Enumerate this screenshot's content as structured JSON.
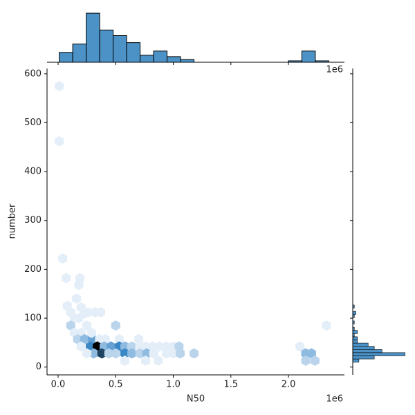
{
  "chart_data": [
    {
      "type": "hexbin",
      "xlabel": "N50",
      "ylabel": "number",
      "offset_label": "1e6",
      "x": [
        10000,
        10000,
        40000,
        70000,
        190000,
        180000,
        160000,
        200000,
        80000,
        110000,
        230000,
        260000,
        320000,
        370000,
        140000,
        180000,
        110000,
        500000,
        2330000,
        140000,
        200000,
        170000,
        230000,
        300000,
        360000,
        410000,
        530000,
        700000,
        200000,
        280000,
        340000,
        400000,
        460000,
        530000,
        580000,
        640000,
        710000,
        760000,
        820000,
        880000,
        940000,
        1000000,
        1050000,
        2100000,
        310000,
        380000,
        440000,
        500000,
        580000,
        640000,
        710000,
        770000,
        830000,
        940000,
        1000000,
        1060000,
        1180000,
        2150000,
        2200000,
        580000,
        760000,
        870000,
        2150000,
        2230000,
        250000,
        290000,
        250000
      ],
      "y": [
        575,
        462,
        222,
        182,
        182,
        168,
        140,
        122,
        125,
        112,
        110,
        112,
        112,
        112,
        100,
        100,
        85,
        85,
        85,
        70,
        70,
        57,
        57,
        57,
        57,
        57,
        57,
        57,
        42,
        42,
        42,
        42,
        42,
        42,
        42,
        42,
        42,
        42,
        42,
        42,
        42,
        42,
        42,
        42,
        28,
        28,
        28,
        28,
        28,
        28,
        28,
        28,
        28,
        28,
        28,
        28,
        28,
        28,
        28,
        13,
        13,
        13,
        13,
        13,
        28,
        70,
        85
      ],
      "counts": [
        1,
        1,
        1,
        1,
        1,
        1,
        1,
        1,
        1,
        1,
        1,
        1,
        1,
        1,
        1,
        1,
        2,
        2,
        1,
        1,
        1,
        2,
        3,
        4,
        1,
        1,
        1,
        1,
        1,
        5,
        9,
        3,
        4,
        5,
        3,
        2,
        1,
        1,
        1,
        1,
        1,
        1,
        2,
        1,
        3,
        7,
        2,
        2,
        5,
        3,
        2,
        3,
        1,
        1,
        1,
        2,
        2,
        3,
        3,
        1,
        1,
        1,
        2,
        2,
        1,
        1,
        1
      ],
      "cmap": [
        "#e4eef9",
        "#3a87c6",
        "#000000"
      ],
      "xlim": [
        -96000,
        2486000
      ],
      "ylim": [
        -16,
        611
      ],
      "xticks": [
        {
          "value": 0,
          "label": "0.0"
        },
        {
          "value": 500000,
          "label": "0.5"
        },
        {
          "value": 1000000,
          "label": "1.0"
        },
        {
          "value": 1500000,
          "label": "1.5"
        },
        {
          "value": 2000000,
          "label": "2.0"
        }
      ],
      "yticks": [
        0,
        100,
        200,
        300,
        400,
        500,
        600
      ]
    },
    {
      "type": "histogram",
      "orientation": "vertical",
      "offset_label": "1e6",
      "color": "#4c92c6",
      "bins": [
        10000,
        127000,
        244000,
        361000,
        478000,
        595000,
        712000,
        829000,
        946000,
        1063000,
        1180000,
        1297000,
        1414000,
        1531000,
        1648000,
        1765000,
        1882000,
        1999000,
        2116000,
        2233000,
        2350000
      ],
      "counts": [
        7,
        13,
        35,
        23,
        19,
        14,
        5,
        8,
        4,
        2,
        0,
        0,
        0,
        0,
        0,
        0,
        0,
        1,
        8,
        1
      ],
      "countlim": [
        0,
        38
      ]
    },
    {
      "type": "histogram",
      "orientation": "horizontal",
      "color": "#4c92c6",
      "bins": [
        10,
        16.5,
        23,
        29.5,
        36,
        42.5,
        49,
        55.5,
        62,
        68.5,
        75,
        81.5,
        88,
        94.5,
        101,
        107.5,
        114,
        120.5,
        127
      ],
      "counts": [
        4,
        14,
        34,
        19,
        14,
        10,
        3,
        3,
        1,
        3,
        1,
        0,
        1,
        0,
        1,
        2,
        0,
        1
      ],
      "countlim": [
        0,
        36
      ]
    }
  ]
}
